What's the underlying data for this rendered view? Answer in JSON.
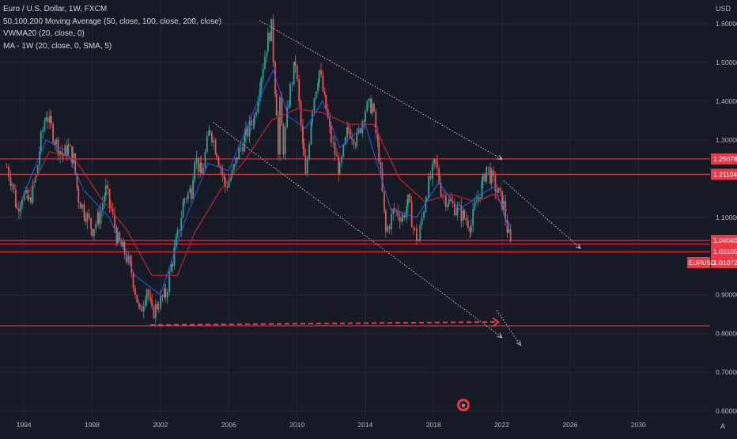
{
  "legend": {
    "symbol": "Euro / U.S. Dollar, 1W, FXCM",
    "ma": "50,100,200 Moving Average (50, close, 100, close, 200, close)",
    "vwma": "VWMA20 (20, close, 0)",
    "mtf": "MA - 1W (20, close, 0, SMA, 5)"
  },
  "currency": "USD",
  "corner_glyph": "A",
  "event_glyph": "e",
  "colors": {
    "background": "#161a25",
    "grid": "#242833",
    "axis_text": "#b2b5be",
    "up": "#26a69a",
    "down": "#ef5350",
    "hline": "#f23645",
    "ma_red": "#b2242f",
    "ma_blue": "#2962ff",
    "channel": "#d1d4dc",
    "arrow": "#f23645"
  },
  "chart_data": {
    "type": "candlestick",
    "symbol": "EURUSD",
    "interval": "1W",
    "x_ticks": [
      "1994",
      "1998",
      "2002",
      "2006",
      "2010",
      "2014",
      "2018",
      "2022",
      "2026",
      "2030"
    ],
    "y_ticks": [
      "1.60000",
      "1.50000",
      "1.40000",
      "1.30000",
      "1.10000",
      "0.90000",
      "0.80000",
      "0.70000",
      "0.60000"
    ],
    "xlim": [
      1992.6,
      2034.2
    ],
    "ylim": [
      0.583,
      1.661
    ],
    "price_path": [
      [
        1993.0,
        1.23
      ],
      [
        1993.3,
        1.19
      ],
      [
        1993.6,
        1.12
      ],
      [
        1993.9,
        1.16
      ],
      [
        1994.3,
        1.14
      ],
      [
        1994.7,
        1.2
      ],
      [
        1995.0,
        1.3
      ],
      [
        1995.3,
        1.37
      ],
      [
        1995.6,
        1.33
      ],
      [
        1995.9,
        1.29
      ],
      [
        1996.3,
        1.26
      ],
      [
        1996.6,
        1.28
      ],
      [
        1996.9,
        1.25
      ],
      [
        1997.2,
        1.15
      ],
      [
        1997.6,
        1.11
      ],
      [
        1998.0,
        1.07
      ],
      [
        1998.4,
        1.1
      ],
      [
        1998.8,
        1.17
      ],
      [
        1999.1,
        1.12
      ],
      [
        1999.5,
        1.04
      ],
      [
        1999.9,
        1.01
      ],
      [
        2000.3,
        0.96
      ],
      [
        2000.8,
        0.85
      ],
      [
        2001.2,
        0.92
      ],
      [
        2001.5,
        0.85
      ],
      [
        2001.9,
        0.88
      ],
      [
        2002.3,
        0.9
      ],
      [
        2002.7,
        0.99
      ],
      [
        2003.0,
        1.05
      ],
      [
        2003.4,
        1.15
      ],
      [
        2003.8,
        1.17
      ],
      [
        2004.0,
        1.26
      ],
      [
        2004.4,
        1.21
      ],
      [
        2004.9,
        1.33
      ],
      [
        2005.3,
        1.27
      ],
      [
        2005.8,
        1.18
      ],
      [
        2006.2,
        1.21
      ],
      [
        2006.6,
        1.27
      ],
      [
        2007.0,
        1.31
      ],
      [
        2007.5,
        1.36
      ],
      [
        2007.9,
        1.47
      ],
      [
        2008.3,
        1.56
      ],
      [
        2008.5,
        1.59
      ],
      [
        2008.8,
        1.38
      ],
      [
        2008.9,
        1.26
      ],
      [
        2009.0,
        1.39
      ],
      [
        2009.2,
        1.28
      ],
      [
        2009.6,
        1.43
      ],
      [
        2009.9,
        1.5
      ],
      [
        2010.4,
        1.25
      ],
      [
        2010.5,
        1.2
      ],
      [
        2010.9,
        1.39
      ],
      [
        2011.3,
        1.48
      ],
      [
        2011.7,
        1.38
      ],
      [
        2012.0,
        1.3
      ],
      [
        2012.5,
        1.22
      ],
      [
        2013.0,
        1.33
      ],
      [
        2013.5,
        1.3
      ],
      [
        2014.0,
        1.38
      ],
      [
        2014.4,
        1.39
      ],
      [
        2014.8,
        1.26
      ],
      [
        2015.0,
        1.16
      ],
      [
        2015.2,
        1.06
      ],
      [
        2015.7,
        1.12
      ],
      [
        2016.2,
        1.1
      ],
      [
        2016.5,
        1.14
      ],
      [
        2016.9,
        1.06
      ],
      [
        2017.1,
        1.04
      ],
      [
        2017.6,
        1.17
      ],
      [
        2018.1,
        1.24
      ],
      [
        2018.5,
        1.16
      ],
      [
        2018.9,
        1.14
      ],
      [
        2019.4,
        1.12
      ],
      [
        2019.8,
        1.1
      ],
      [
        2020.2,
        1.08
      ],
      [
        2020.5,
        1.14
      ],
      [
        2020.9,
        1.19
      ],
      [
        2021.1,
        1.23
      ],
      [
        2021.4,
        1.2
      ],
      [
        2021.8,
        1.16
      ],
      [
        2022.1,
        1.13
      ],
      [
        2022.4,
        1.05
      ],
      [
        2022.6,
        1.01
      ]
    ],
    "horizontal_levels": [
      1.25078,
      1.21104,
      1.0404,
      1.03105,
      1.01072,
      0.82
    ],
    "price_labels": [
      {
        "text": "1.25078",
        "value": 1.25078
      },
      {
        "text": "1.21104",
        "value": 1.21104
      },
      {
        "text": "1.04040",
        "value": 1.0404
      },
      {
        "text": "1.03105",
        "value": 1.03105
      },
      {
        "text": "1.01072",
        "value": 1.01072
      }
    ],
    "symbol_tag": "EURUSD",
    "trendlines": [
      {
        "from": [
          2007.8,
          1.608
        ],
        "to": [
          2022.0,
          1.25
        ]
      },
      {
        "from": [
          2022.1,
          1.195
        ],
        "to": [
          2026.6,
          1.02
        ]
      },
      {
        "from": [
          2005.1,
          1.345
        ],
        "to": [
          2022.0,
          0.79
        ]
      },
      {
        "from": [
          2021.7,
          0.86
        ],
        "to": [
          2023.1,
          0.77
        ]
      }
    ],
    "dashed_arrow": {
      "from": [
        2001.4,
        0.822
      ],
      "to": [
        2021.8,
        0.83
      ]
    },
    "ma_slow": [
      [
        1994.0,
        1.14
      ],
      [
        1995.5,
        1.27
      ],
      [
        1997.0,
        1.25
      ],
      [
        1998.5,
        1.15
      ],
      [
        2000.0,
        1.07
      ],
      [
        2001.5,
        0.95
      ],
      [
        2003.0,
        0.95
      ],
      [
        2004.0,
        1.06
      ],
      [
        2005.5,
        1.17
      ],
      [
        2007.0,
        1.25
      ],
      [
        2008.5,
        1.35
      ],
      [
        2010.0,
        1.38
      ],
      [
        2011.5,
        1.37
      ],
      [
        2013.0,
        1.34
      ],
      [
        2014.5,
        1.34
      ],
      [
        2016.0,
        1.2
      ],
      [
        2017.5,
        1.14
      ],
      [
        2019.0,
        1.16
      ],
      [
        2020.5,
        1.14
      ],
      [
        2021.5,
        1.16
      ],
      [
        2022.3,
        1.12
      ]
    ],
    "ma_fast": [
      [
        1994.0,
        1.16
      ],
      [
        1995.3,
        1.3
      ],
      [
        1996.5,
        1.27
      ],
      [
        1997.5,
        1.17
      ],
      [
        1999.0,
        1.1
      ],
      [
        2000.5,
        0.95
      ],
      [
        2002.0,
        0.9
      ],
      [
        2003.5,
        1.1
      ],
      [
        2004.8,
        1.24
      ],
      [
        2006.0,
        1.22
      ],
      [
        2007.5,
        1.38
      ],
      [
        2008.6,
        1.48
      ],
      [
        2009.5,
        1.36
      ],
      [
        2010.5,
        1.33
      ],
      [
        2011.5,
        1.4
      ],
      [
        2012.5,
        1.28
      ],
      [
        2014.0,
        1.34
      ],
      [
        2015.5,
        1.12
      ],
      [
        2017.0,
        1.1
      ],
      [
        2018.3,
        1.19
      ],
      [
        2019.5,
        1.12
      ],
      [
        2020.8,
        1.16
      ],
      [
        2021.6,
        1.18
      ],
      [
        2022.4,
        1.07
      ]
    ]
  }
}
